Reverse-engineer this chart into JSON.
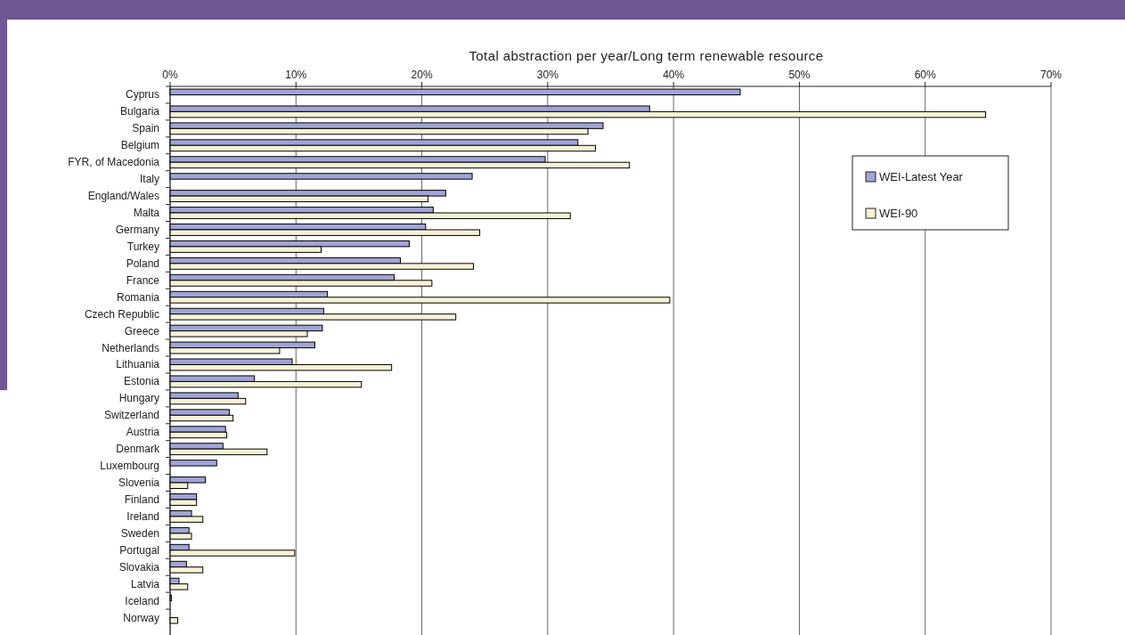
{
  "chart_data": {
    "type": "bar",
    "orientation": "horizontal",
    "title": "Total abstraction per year/Long term renewable resource",
    "categories": [
      "Cyprus",
      "Bulgaria",
      "Spain",
      "Belgium",
      "FYR, of Macedonia",
      "Italy",
      "England/Wales",
      "Malta",
      "Germany",
      "Turkey",
      "Poland",
      "France",
      "Romania",
      "Czech Republic",
      "Greece",
      "Netherlands",
      "Lithuania",
      "Estonia",
      "Hungary",
      "Switzerland",
      "Austria",
      "Denmark",
      "Luxembourg",
      "Slovenia",
      "Finland",
      "Ireland",
      "Sweden",
      "Portugal",
      "Slovakia",
      "Latvia",
      "Iceland",
      "Norway"
    ],
    "series": [
      {
        "name": "WEI-Latest Year",
        "color": "#a0a4d6",
        "values": [
          45.3,
          38.1,
          34.4,
          32.4,
          29.8,
          24.0,
          21.9,
          20.9,
          20.3,
          19.0,
          18.3,
          17.8,
          12.5,
          12.2,
          12.1,
          11.5,
          9.7,
          6.7,
          5.4,
          4.7,
          4.4,
          4.2,
          3.7,
          2.8,
          2.1,
          1.7,
          1.5,
          1.5,
          1.3,
          0.7,
          0.1,
          null
        ]
      },
      {
        "name": "WEI-90",
        "color": "#f5f2d6",
        "values": [
          null,
          64.8,
          33.2,
          33.8,
          36.5,
          null,
          20.5,
          31.8,
          24.6,
          12.0,
          24.1,
          20.8,
          39.7,
          22.7,
          10.9,
          8.7,
          17.6,
          15.2,
          6.0,
          5.0,
          4.5,
          7.7,
          null,
          1.4,
          2.1,
          2.6,
          1.7,
          9.9,
          2.6,
          1.4,
          null,
          0.6
        ]
      }
    ],
    "xlim": [
      0,
      70
    ],
    "xticks": [
      {
        "value": 0,
        "label": "0%"
      },
      {
        "value": 10,
        "label": "10%"
      },
      {
        "value": 20,
        "label": "20%"
      },
      {
        "value": 30,
        "label": "30%"
      },
      {
        "value": 40,
        "label": "40%"
      },
      {
        "value": 50,
        "label": "50%"
      },
      {
        "value": 60,
        "label": "60%"
      },
      {
        "value": 70,
        "label": "70%"
      }
    ],
    "grid": "x",
    "legend": "top right"
  }
}
